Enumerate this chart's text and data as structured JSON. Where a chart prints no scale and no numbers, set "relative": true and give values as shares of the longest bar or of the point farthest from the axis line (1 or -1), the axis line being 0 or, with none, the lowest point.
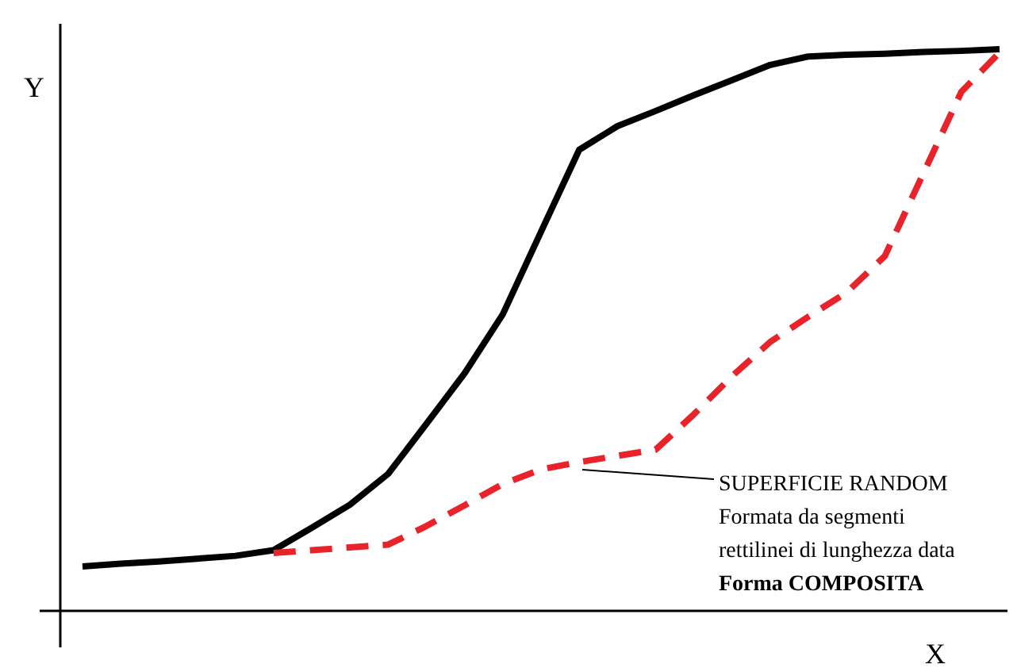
{
  "chart_data": {
    "type": "line",
    "relative": true,
    "xlabel": "X",
    "ylabel": "Y",
    "marker": "none",
    "categories": [
      null,
      null,
      null,
      null,
      null,
      null,
      null,
      null,
      null,
      null,
      null,
      null,
      null,
      null,
      null,
      null,
      null,
      null,
      null,
      null,
      null,
      null,
      null,
      null,
      null
    ],
    "series": [
      {
        "color": "#000000",
        "line_style": "solid",
        "values": [
          0.079,
          0.084,
          0.088,
          0.093,
          0.098,
          0.108,
          0.148,
          0.189,
          0.244,
          0.333,
          0.423,
          0.528,
          0.675,
          0.821,
          0.863,
          0.89,
          0.918,
          0.945,
          0.972,
          0.987,
          0.99,
          0.992,
          0.995,
          0.997,
          1
        ]
      },
      {
        "color": "#e8232a",
        "line_style": "dashed",
        "values": [
          null,
          null,
          null,
          null,
          null,
          0.103,
          0.108,
          0.113,
          0.118,
          0.151,
          0.188,
          0.226,
          0.252,
          0.265,
          0.276,
          0.287,
          0.35,
          0.418,
          0.479,
          0.524,
          0.567,
          0.632,
          0.778,
          0.924,
          0.994
        ]
      }
    ],
    "annotations": [
      "SUPERFICIE RANDOM\nFormata da segmenti\nrettilinei di lunghezza data",
      "Forma COMPOSITA"
    ]
  }
}
